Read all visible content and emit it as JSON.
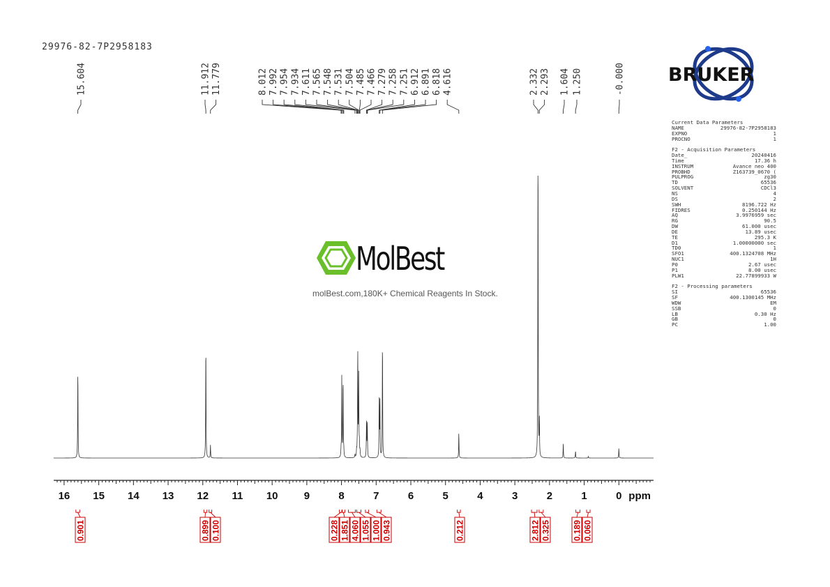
{
  "sample_id": "29976-82-7P2958183",
  "watermark": {
    "brand": "MolBest",
    "tagline": "molBest.com,180K+ Chemical Reagents In Stock."
  },
  "bruker_logo_text": "BRUKER",
  "parameters": {
    "current": {
      "title": "Current Data Parameters",
      "rows": [
        {
          "k": "NAME",
          "v": "29976-82-7P2958183",
          "u": ""
        },
        {
          "k": "EXPNO",
          "v": "1",
          "u": ""
        },
        {
          "k": "PROCNO",
          "v": "1",
          "u": ""
        }
      ]
    },
    "acquisition": {
      "title": "F2 - Acquisition Parameters",
      "rows": [
        {
          "k": "Date_",
          "v": "20240416",
          "u": ""
        },
        {
          "k": "Time",
          "v": "17.36",
          "u": "h"
        },
        {
          "k": "INSTRUM",
          "v": "Avance neo 400",
          "u": ""
        },
        {
          "k": "PROBHD",
          "v": "Z163739_0670 (",
          "u": ""
        },
        {
          "k": "PULPROG",
          "v": "zg30",
          "u": ""
        },
        {
          "k": "TD",
          "v": "65536",
          "u": ""
        },
        {
          "k": "SOLVENT",
          "v": "CDCl3",
          "u": ""
        },
        {
          "k": "NS",
          "v": "4",
          "u": ""
        },
        {
          "k": "DS",
          "v": "2",
          "u": ""
        },
        {
          "k": "SWH",
          "v": "8196.722",
          "u": "Hz"
        },
        {
          "k": "FIDRES",
          "v": "0.250144",
          "u": "Hz"
        },
        {
          "k": "AQ",
          "v": "3.9976959",
          "u": "sec"
        },
        {
          "k": "RG",
          "v": "90.5",
          "u": ""
        },
        {
          "k": "DW",
          "v": "61.000",
          "u": "usec"
        },
        {
          "k": "DE",
          "v": "13.89",
          "u": "usec"
        },
        {
          "k": "TE",
          "v": "295.3",
          "u": "K"
        },
        {
          "k": "D1",
          "v": "1.00000000",
          "u": "sec"
        },
        {
          "k": "TD0",
          "v": "1",
          "u": ""
        },
        {
          "k": "SFO1",
          "v": "400.1324708",
          "u": "MHz"
        },
        {
          "k": "NUC1",
          "v": "1H",
          "u": ""
        },
        {
          "k": "P0",
          "v": "2.67",
          "u": "usec"
        },
        {
          "k": "P1",
          "v": "8.00",
          "u": "usec"
        },
        {
          "k": "PLW1",
          "v": "22.77899933",
          "u": "W"
        }
      ]
    },
    "processing": {
      "title": "F2 - Processing parameters",
      "rows": [
        {
          "k": "SI",
          "v": "65536",
          "u": ""
        },
        {
          "k": "SF",
          "v": "400.1300145",
          "u": "MHz"
        },
        {
          "k": "WDW",
          "v": "EM",
          "u": ""
        },
        {
          "k": "SSB",
          "v": "0",
          "u": ""
        },
        {
          "k": "LB",
          "v": "0.30",
          "u": "Hz"
        },
        {
          "k": "GB",
          "v": "0",
          "u": ""
        },
        {
          "k": "PC",
          "v": "1.00",
          "u": ""
        }
      ]
    }
  },
  "chart_data": {
    "type": "line",
    "xlabel": "ppm",
    "xlim": [
      16.3,
      -1.0
    ],
    "x_reversed": true,
    "ticks": [
      16,
      15,
      14,
      13,
      12,
      11,
      10,
      9,
      8,
      7,
      6,
      5,
      4,
      3,
      2,
      1,
      0
    ],
    "tick_labels": [
      "16",
      "15",
      "14",
      "13",
      "12",
      "11",
      "10",
      "9",
      "8",
      "7",
      "6",
      "5",
      "4",
      "3",
      "2",
      "1",
      "0"
    ],
    "peaks": [
      {
        "ppm": 15.604,
        "h": 0.28
      },
      {
        "ppm": 11.912,
        "h": 0.36
      },
      {
        "ppm": 11.779,
        "h": 0.04
      },
      {
        "ppm": 8.012,
        "h": 0.02
      },
      {
        "ppm": 7.992,
        "h": 0.25
      },
      {
        "ppm": 7.954,
        "h": 0.25
      },
      {
        "ppm": 7.934,
        "h": 0.02
      },
      {
        "ppm": 7.611,
        "h": 0.01
      },
      {
        "ppm": 7.565,
        "h": 0.02
      },
      {
        "ppm": 7.548,
        "h": 0.02
      },
      {
        "ppm": 7.531,
        "h": 0.34
      },
      {
        "ppm": 7.504,
        "h": 0.25
      },
      {
        "ppm": 7.485,
        "h": 0.04
      },
      {
        "ppm": 7.466,
        "h": 0.02
      },
      {
        "ppm": 7.279,
        "h": 0.11
      },
      {
        "ppm": 7.258,
        "h": 0.09
      },
      {
        "ppm": 7.251,
        "h": 0.03
      },
      {
        "ppm": 6.912,
        "h": 0.18
      },
      {
        "ppm": 6.891,
        "h": 0.17
      },
      {
        "ppm": 6.818,
        "h": 0.37
      },
      {
        "ppm": 4.616,
        "h": 0.08
      },
      {
        "ppm": 2.332,
        "h": 1.0
      },
      {
        "ppm": 2.293,
        "h": 0.11
      },
      {
        "ppm": 1.604,
        "h": 0.045
      },
      {
        "ppm": 1.25,
        "h": 0.022
      },
      {
        "ppm": 0.88,
        "h": 0.005
      },
      {
        "ppm": 0.0,
        "h": 0.03
      }
    ],
    "peak_labels": [
      {
        "label": "15.604",
        "ppm": 15.604
      },
      {
        "label": "11.912",
        "ppm": 11.912
      },
      {
        "label": "11.779",
        "ppm": 11.779
      },
      {
        "label": "8.012",
        "ppm": 8.012
      },
      {
        "label": "7.992",
        "ppm": 7.992
      },
      {
        "label": "7.954",
        "ppm": 7.954
      },
      {
        "label": "7.934",
        "ppm": 7.934
      },
      {
        "label": "7.611",
        "ppm": 7.611
      },
      {
        "label": "7.565",
        "ppm": 7.565
      },
      {
        "label": "7.548",
        "ppm": 7.548
      },
      {
        "label": "7.531",
        "ppm": 7.531
      },
      {
        "label": "7.504",
        "ppm": 7.504
      },
      {
        "label": "7.485",
        "ppm": 7.485
      },
      {
        "label": "7.466",
        "ppm": 7.466
      },
      {
        "label": "7.279",
        "ppm": 7.279
      },
      {
        "label": "7.258",
        "ppm": 7.258
      },
      {
        "label": "7.251",
        "ppm": 7.251
      },
      {
        "label": "6.912",
        "ppm": 6.912
      },
      {
        "label": "6.891",
        "ppm": 6.891
      },
      {
        "label": "6.818",
        "ppm": 6.818
      },
      {
        "label": "4.616",
        "ppm": 4.616
      },
      {
        "label": "2.332",
        "ppm": 2.332
      },
      {
        "label": "2.293",
        "ppm": 2.293
      },
      {
        "label": "1.604",
        "ppm": 1.604
      },
      {
        "label": "1.250",
        "ppm": 1.25
      },
      {
        "label": "-0.000",
        "ppm": 0.0
      }
    ],
    "integrals": [
      {
        "value": "0.901",
        "ppm": 15.6,
        "from": 15.66,
        "to": 15.55
      },
      {
        "value": "0.899",
        "ppm": 11.93,
        "from": 11.97,
        "to": 11.88
      },
      {
        "value": "0.100",
        "ppm": 11.78,
        "from": 11.82,
        "to": 11.74
      },
      {
        "value": "0.228",
        "ppm": 8.02,
        "from": 8.06,
        "to": 7.98
      },
      {
        "value": "1.851",
        "ppm": 7.96,
        "from": 7.99,
        "to": 7.9
      },
      {
        "value": "4.060",
        "ppm": 7.72,
        "from": 7.8,
        "to": 7.6
      },
      {
        "value": "1.055",
        "ppm": 7.5,
        "from": 7.56,
        "to": 7.44
      },
      {
        "value": "1.000",
        "ppm": 7.27,
        "from": 7.31,
        "to": 7.22
      },
      {
        "value": "0.943",
        "ppm": 6.92,
        "from": 6.98,
        "to": 6.86
      },
      {
        "value": "0.212",
        "ppm": 4.62,
        "from": 4.66,
        "to": 4.57
      },
      {
        "value": "2.812",
        "ppm": 2.44,
        "from": 2.52,
        "to": 2.36
      },
      {
        "value": "0.325",
        "ppm": 2.24,
        "from": 2.3,
        "to": 2.18
      },
      {
        "value": "0.189",
        "ppm": 1.18,
        "from": 1.24,
        "to": 1.12
      },
      {
        "value": "0.060",
        "ppm": 0.88,
        "from": 0.93,
        "to": 0.83
      }
    ],
    "colors": {
      "trace": "#333333",
      "integral": "#cc0000",
      "axis": "#222222"
    }
  }
}
